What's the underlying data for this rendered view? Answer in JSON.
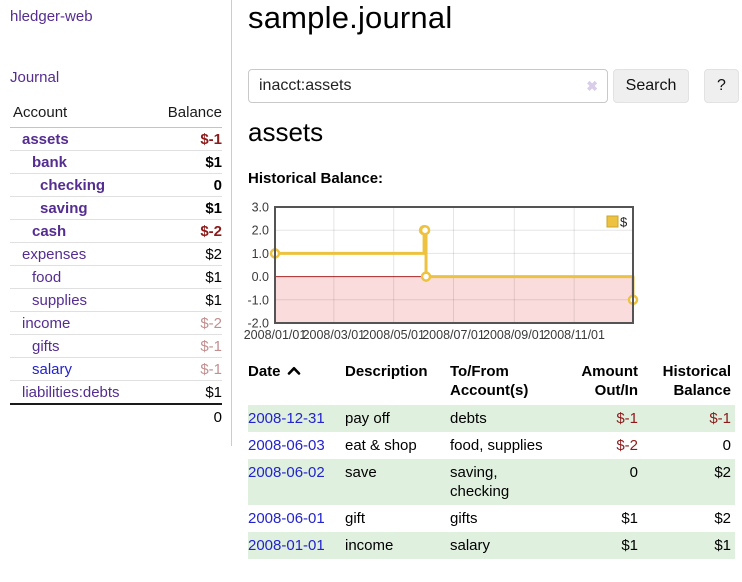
{
  "sidebar": {
    "brand": "hledger-web",
    "nav_journal": "Journal",
    "columns": {
      "account": "Account",
      "balance": "Balance"
    },
    "rows": [
      {
        "name": "assets",
        "depth": 1,
        "bold": true,
        "balance": "$-1"
      },
      {
        "name": "bank",
        "depth": 2,
        "bold": true,
        "balance": "$1"
      },
      {
        "name": "checking",
        "depth": 3,
        "bold": true,
        "balance": "0"
      },
      {
        "name": "saving",
        "depth": 3,
        "bold": true,
        "balance": "$1"
      },
      {
        "name": "cash",
        "depth": 2,
        "bold": true,
        "balance": "$-2"
      },
      {
        "name": "expenses",
        "depth": 1,
        "bold": false,
        "balance": "$2"
      },
      {
        "name": "food",
        "depth": 2,
        "bold": false,
        "balance": "$1"
      },
      {
        "name": "supplies",
        "depth": 2,
        "bold": false,
        "balance": "$1"
      },
      {
        "name": "income",
        "depth": 1,
        "bold": false,
        "balance": "$-2"
      },
      {
        "name": "gifts",
        "depth": 2,
        "bold": false,
        "balance": "$-1"
      },
      {
        "name": "salary",
        "depth": 2,
        "bold": false,
        "balance": "$-1",
        "unvisited": true
      },
      {
        "name": "liabilities:debts",
        "depth": 1,
        "bold": false,
        "balance": "$1",
        "nosep": true
      }
    ],
    "total": "0"
  },
  "main": {
    "title": "sample.journal",
    "account_heading": "assets",
    "chart_label": "Historical Balance:"
  },
  "search": {
    "value": "inacct:assets",
    "clear_icon": "✖",
    "button": "Search",
    "help": "?"
  },
  "chart_data": {
    "type": "line",
    "step": true,
    "title": "Historical Balance",
    "series": [
      {
        "name": "$",
        "points": [
          [
            "2008-01-01",
            1
          ],
          [
            "2008-06-01",
            2
          ],
          [
            "2008-06-02",
            2
          ],
          [
            "2008-06-03",
            0
          ],
          [
            "2008-12-31",
            -1
          ]
        ]
      }
    ],
    "ylim": [
      -2,
      3
    ],
    "yticks": [
      3.0,
      2.0,
      1.0,
      0.0,
      -1.0,
      -2.0
    ],
    "xticks": [
      "2008/01/01",
      "2008/03/01",
      "2008/05/01",
      "2008/07/01",
      "2008/09/01",
      "2008/11/01"
    ],
    "legend_position": "top-right",
    "grid": true,
    "line_color": "#edc240",
    "negative_fill": "#fbdcdc",
    "zero_line_color": "#a82424"
  },
  "register": {
    "headers": {
      "date": "Date",
      "description": "Description",
      "account_line1": "To/From",
      "account_line2": "Account(s)",
      "amount_line1": "Amount",
      "amount_line2": "Out/In",
      "balance_line1": "Historical",
      "balance_line2": "Balance"
    },
    "rows": [
      {
        "date": "2008-12-31",
        "description": "pay off",
        "accounts": [
          "debts"
        ],
        "amount": "$-1",
        "balance": "$-1"
      },
      {
        "date": "2008-06-03",
        "description": "eat & shop",
        "accounts": [
          "food, supplies"
        ],
        "amount": "$-2",
        "balance": "0"
      },
      {
        "date": "2008-06-02",
        "description": "save",
        "accounts": [
          "saving,",
          "checking"
        ],
        "amount": "0",
        "balance": "$2"
      },
      {
        "date": "2008-06-01",
        "description": "gift",
        "accounts": [
          "gifts"
        ],
        "amount": "$1",
        "balance": "$2"
      },
      {
        "date": "2008-01-01",
        "description": "income",
        "accounts": [
          "salary"
        ],
        "amount": "$1",
        "balance": "$1"
      }
    ]
  },
  "colors": {
    "link_purple": "#552d90",
    "link_blue": "#2323cc",
    "negative_strong": "#8d1a1a",
    "negative_faded": "#c28f8f",
    "row_green": "#dff0df",
    "chart_line": "#edc240"
  }
}
